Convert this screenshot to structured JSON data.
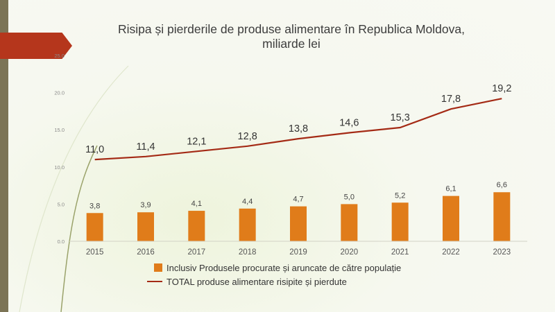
{
  "chart_data": {
    "type": "bar",
    "title": "Risipa și pierderile de produse alimentare în Republica Moldova,",
    "subtitle": "miliarde lei",
    "categories": [
      "2015",
      "2016",
      "2017",
      "2018",
      "2019",
      "2020",
      "2021",
      "2022",
      "2023"
    ],
    "ylim": [
      0,
      25
    ],
    "yticks": [
      "0.0",
      "5.0",
      "10.0",
      "15.0",
      "20.0",
      "25.0"
    ],
    "legend_position": "bottom",
    "grid": false,
    "series": [
      {
        "name": "Inclusiv Produsele procurate și aruncate de către populație",
        "type": "bar",
        "color": "#e07c1a",
        "values": [
          3.8,
          3.9,
          4.1,
          4.4,
          4.7,
          5.0,
          5.2,
          6.1,
          6.6
        ],
        "labels": [
          "3,8",
          "3,9",
          "4,1",
          "4,4",
          "4,7",
          "5,0",
          "5,2",
          "6,1",
          "6,6"
        ]
      },
      {
        "name": "TOTAL produse alimentare risipite și pierdute",
        "type": "line",
        "color": "#a42a15",
        "values": [
          11.0,
          11.4,
          12.1,
          12.8,
          13.8,
          14.6,
          15.3,
          17.8,
          19.2
        ],
        "labels": [
          "11,0",
          "11,4",
          "12,1",
          "12,8",
          "13,8",
          "14,6",
          "15,3",
          "17,8",
          "19,2"
        ]
      }
    ]
  }
}
